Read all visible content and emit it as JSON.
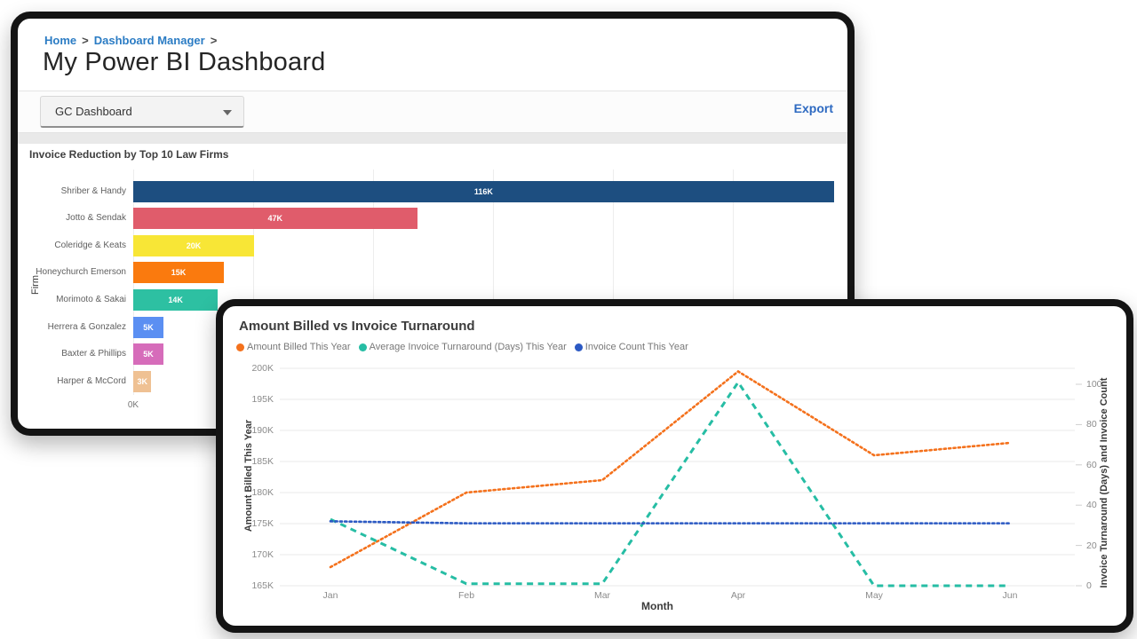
{
  "breadcrumb": {
    "home": "Home",
    "sep1": ">",
    "section": "Dashboard Manager",
    "sep2": ">"
  },
  "header": {
    "title": "My Power BI Dashboard"
  },
  "toolbar": {
    "dashboard_select": {
      "value": "GC Dashboard",
      "icon": "chevron-down"
    },
    "export_label": "Export"
  },
  "colors": {
    "link_blue": "#2b7cc4",
    "export_blue": "#2e6ac1",
    "frame_black": "#141414",
    "gridline": "#e8e8e8"
  },
  "chart_data": [
    {
      "type": "bar",
      "orientation": "horizontal",
      "title": "Invoice Reduction by Top 10 Law Firms",
      "ylabel": "Firm",
      "categories": [
        "Shriber & Handy",
        "Jotto & Sendak",
        "Coleridge & Keats",
        "Honeychurch Emerson",
        "Morimoto & Sakai",
        "Herrera & Gonzalez",
        "Baxter & Phillips",
        "Harper & McCord"
      ],
      "values_k": [
        116,
        47,
        20,
        15,
        14,
        5,
        5,
        3
      ],
      "value_labels": [
        "116K",
        "47K",
        "20K",
        "15K",
        "14K",
        "5K",
        "5K",
        "3K"
      ],
      "bar_colors": [
        "#1d4e80",
        "#e05c6b",
        "#f8e636",
        "#fa7a0e",
        "#2dc0a2",
        "#5b8ff2",
        "#d66cba",
        "#efc193"
      ],
      "xlim_k": [
        0,
        120
      ],
      "gridline_interval_k": 20,
      "x_axis_origin_label": "0K",
      "grid": true
    },
    {
      "type": "line",
      "title": "Amount Billed vs Invoice Turnaround",
      "xlabel": "Month",
      "ylabel_left": "Amount Billed This Year",
      "ylabel_right": "Invoice Turnaround (Days) and Invoice Count",
      "x": [
        "Jan",
        "Feb",
        "Mar",
        "Apr",
        "May",
        "Jun"
      ],
      "series": [
        {
          "name": "Amount Billed This Year",
          "axis": "left",
          "color": "#f4711c",
          "style": "dotted",
          "values_k": [
            168,
            180,
            182,
            199.5,
            186,
            188
          ]
        },
        {
          "name": "Average Invoice Turnaround (Days) This Year",
          "axis": "right",
          "color": "#26bda4",
          "style": "dashed",
          "values": [
            33,
            1,
            1,
            101,
            0,
            0
          ]
        },
        {
          "name": "Invoice Count This Year",
          "axis": "right",
          "color": "#2b59c3",
          "style": "dotted",
          "values": [
            32,
            31,
            31,
            31,
            31,
            31
          ]
        }
      ],
      "left_axis": {
        "range_k": [
          165,
          200
        ],
        "tick_interval_k": 5,
        "tick_labels": [
          "165K",
          "170K",
          "175K",
          "180K",
          "185K",
          "190K",
          "195K",
          "200K"
        ]
      },
      "right_axis": {
        "range": [
          0,
          100
        ],
        "tick_interval": 20,
        "tick_labels": [
          "0",
          "20",
          "40",
          "60",
          "80",
          "100"
        ]
      },
      "legend_position": "top",
      "grid": "horizontal"
    }
  ]
}
